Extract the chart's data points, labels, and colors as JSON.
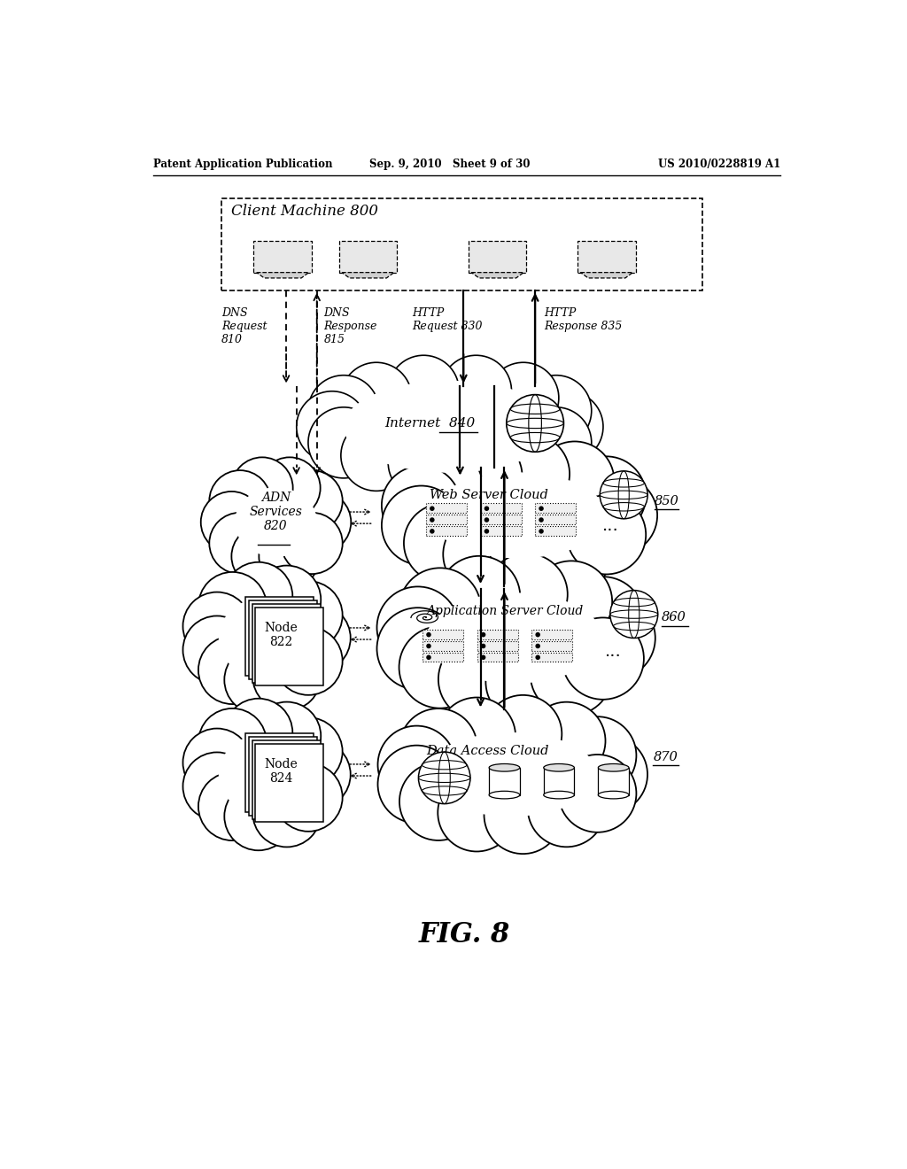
{
  "background_color": "#ffffff",
  "header_left": "Patent Application Publication",
  "header_mid": "Sep. 9, 2010   Sheet 9 of 30",
  "header_right": "US 2010/0228819 A1",
  "footer_label": "FIG. 8"
}
